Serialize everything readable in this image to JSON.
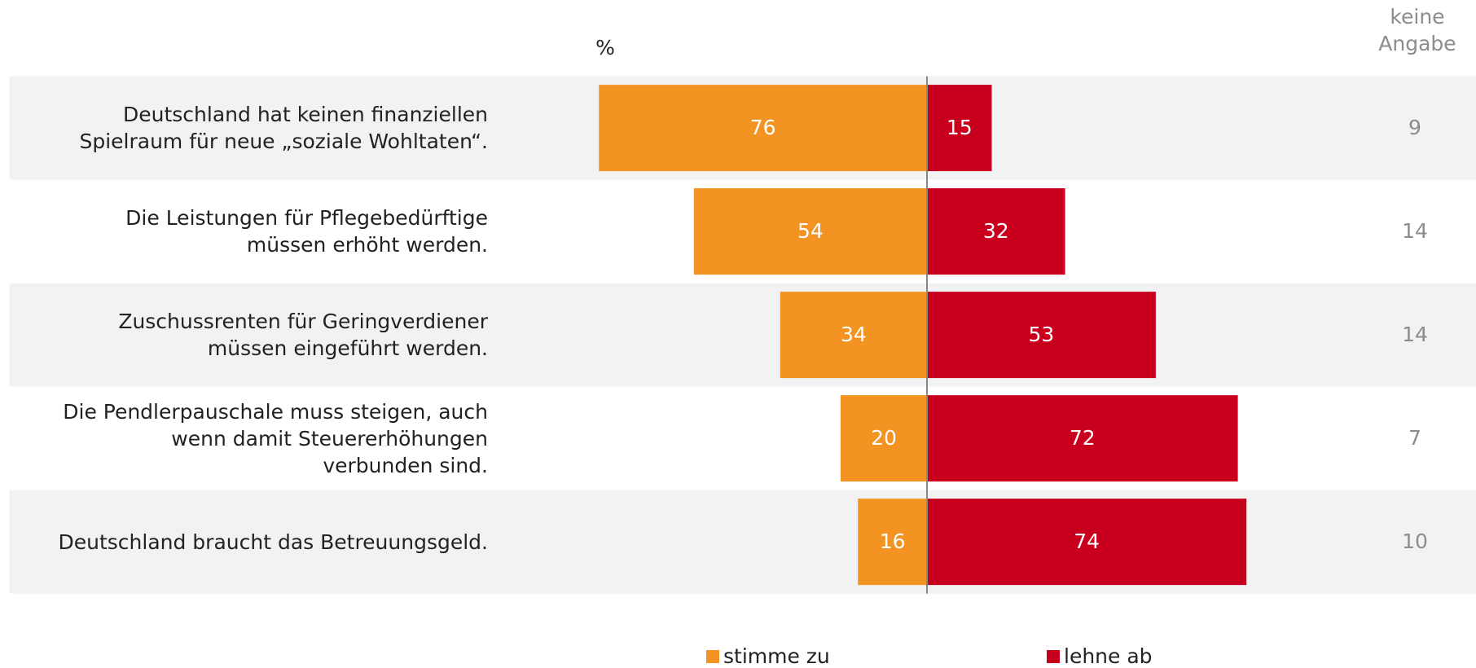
{
  "chart_data": {
    "type": "diverging_bar",
    "unit_label": "%",
    "categories": [
      "Deutschland hat keinen finanziellen\nSpielraum für neue „soziale Wohltaten“.",
      "Die Leistungen für Pflegebedürftige\nmüssen erhöht werden.",
      "Zuschussrenten für Geringverdiener\nmüssen eingeführt werden.",
      "Die Pendlerpauschale muss steigen, auch\nwenn damit Steuererhöhungen\nverbunden sind.",
      "Deutschland braucht das Betreuungsgeld."
    ],
    "series": [
      {
        "name": "stimme zu",
        "color": "#f39422",
        "values": [
          76,
          54,
          34,
          20,
          16
        ]
      },
      {
        "name": "lehne ab",
        "color": "#c8001e",
        "values": [
          15,
          32,
          53,
          72,
          74
        ]
      },
      {
        "name": "keine Angabe",
        "color": "#8c8c8c",
        "values": [
          9,
          14,
          14,
          7,
          10
        ]
      }
    ]
  }
}
